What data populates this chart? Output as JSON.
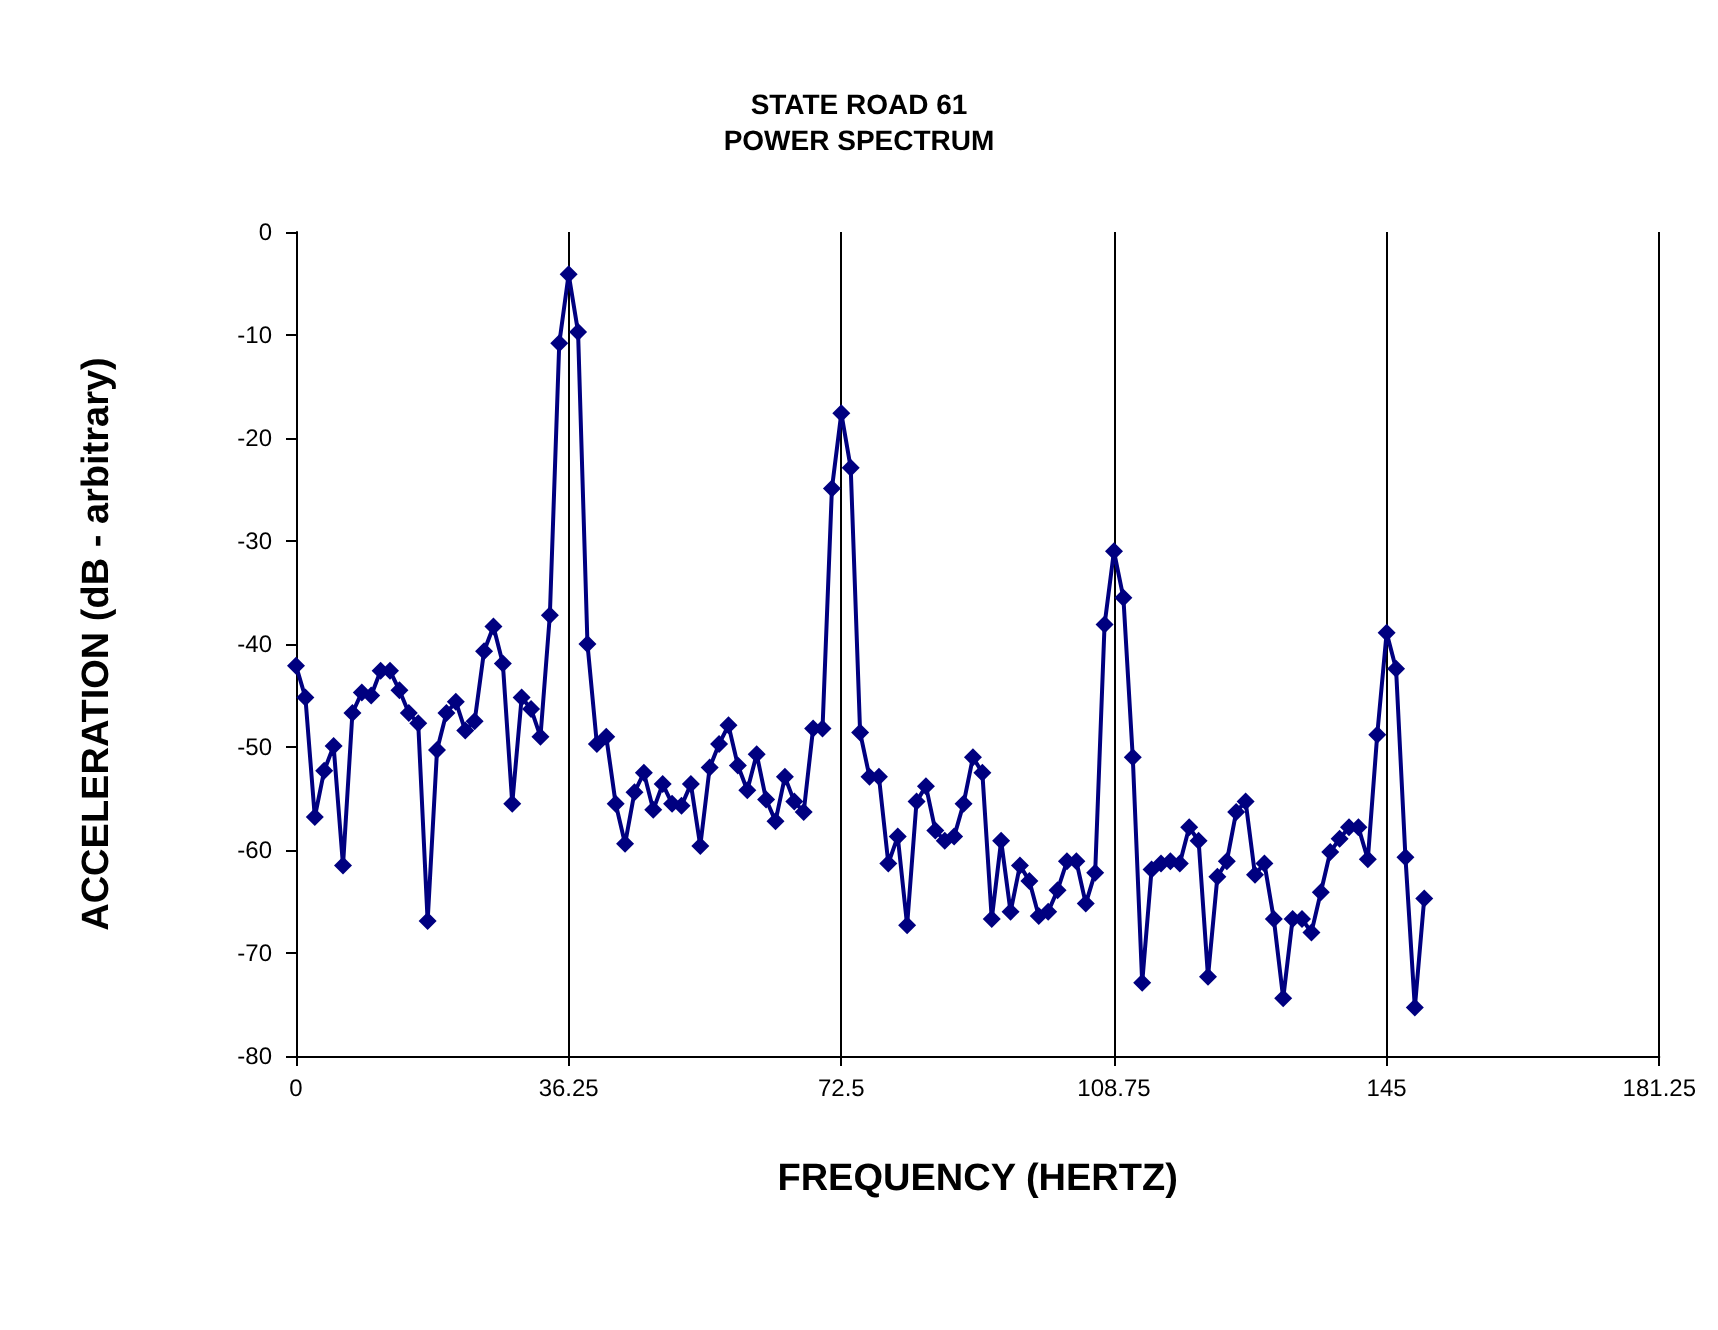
{
  "chart_data": {
    "type": "line",
    "title": "STATE ROAD 61",
    "subtitle": "POWER SPECTRUM",
    "xlabel": "FREQUENCY (HERTZ)",
    "ylabel": "ACCELERATION (dB - arbitrary)",
    "x": [
      0,
      1.25,
      2.5,
      3.75,
      5,
      6.25,
      7.5,
      8.75,
      10,
      11.25,
      12.5,
      13.75,
      15,
      16.25,
      17.5,
      18.75,
      20,
      21.25,
      22.5,
      23.75,
      25,
      26.25,
      27.5,
      28.75,
      30,
      31.25,
      32.5,
      33.75,
      35,
      36.25,
      37.5,
      38.75,
      40,
      41.25,
      42.5,
      43.75,
      45,
      46.25,
      47.5,
      48.75,
      50,
      51.25,
      52.5,
      53.75,
      55,
      56.25,
      57.5,
      58.75,
      60,
      61.25,
      62.5,
      63.75,
      65,
      66.25,
      67.5,
      68.75,
      70,
      71.25,
      72.5,
      73.75,
      75,
      76.25,
      77.5,
      78.75,
      80,
      81.25,
      82.5,
      83.75,
      85,
      86.25,
      87.5,
      88.75,
      90,
      91.25,
      92.5,
      93.75,
      95,
      96.25,
      97.5,
      98.75,
      100,
      101.25,
      102.5,
      103.75,
      105,
      106.25,
      107.5,
      108.75,
      110,
      111.25,
      112.5,
      113.75,
      115,
      116.25,
      117.5,
      118.75,
      120,
      121.25,
      122.5,
      123.75,
      125,
      126.25,
      127.5,
      128.75,
      130,
      131.25,
      132.5,
      133.75,
      135,
      136.25,
      137.5,
      138.75,
      140,
      141.25,
      142.5,
      143.75,
      145,
      146.25,
      147.5,
      148.75,
      150
    ],
    "series": [
      {
        "color": "#000080",
        "values": [
          -42.1,
          -45.2,
          -56.8,
          -52.3,
          -49.9,
          -61.5,
          -46.7,
          -44.7,
          -45.0,
          -42.6,
          -42.6,
          -44.5,
          -46.7,
          -47.7,
          -66.9,
          -50.3,
          -46.7,
          -45.6,
          -48.4,
          -47.5,
          -40.7,
          -38.3,
          -41.9,
          -55.5,
          -45.2,
          -46.3,
          -49.0,
          -37.2,
          -10.8,
          -4.1,
          -9.7,
          -40.0,
          -49.7,
          -49.0,
          -55.5,
          -59.4,
          -54.4,
          -52.5,
          -56.1,
          -53.6,
          -55.5,
          -55.7,
          -53.6,
          -59.6,
          -52.0,
          -49.7,
          -47.9,
          -51.8,
          -54.2,
          -50.7,
          -55.1,
          -57.2,
          -52.9,
          -55.3,
          -56.3,
          -48.2,
          -48.2,
          -24.9,
          -17.6,
          -22.9,
          -48.6,
          -52.9,
          -52.9,
          -61.3,
          -58.7,
          -67.3,
          -55.3,
          -53.8,
          -58.1,
          -59.1,
          -58.7,
          -55.5,
          -51.0,
          -52.5,
          -66.7,
          -59.1,
          -66.0,
          -61.5,
          -63.0,
          -66.4,
          -66.0,
          -63.9,
          -61.1,
          -61.1,
          -65.2,
          -62.2,
          -38.1,
          -31.0,
          -35.5,
          -51.0,
          -72.9,
          -61.9,
          -61.3,
          -61.1,
          -61.3,
          -57.8,
          -59.1,
          -72.3,
          -62.6,
          -61.1,
          -56.3,
          -55.3,
          -62.4,
          -61.3,
          -66.7,
          -74.4,
          -66.7,
          -66.7,
          -68.0,
          -64.1,
          -60.2,
          -58.9,
          -57.8,
          -57.8,
          -60.9,
          -48.8,
          -38.9,
          -42.4,
          -60.7,
          -75.3,
          -64.7
        ]
      }
    ],
    "xlim": [
      0,
      181.25
    ],
    "xticks": [
      0,
      36.25,
      72.5,
      108.75,
      145,
      181.25
    ],
    "ylim": [
      -80,
      0
    ],
    "yticks": [
      -80,
      -70,
      -60,
      -50,
      -40,
      -30,
      -20,
      -10,
      0
    ],
    "grid": "x",
    "marker": "diamond",
    "line_style": "solid"
  }
}
